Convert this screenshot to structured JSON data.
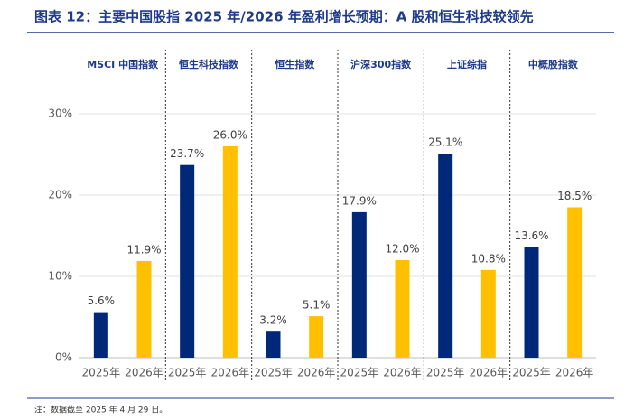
{
  "chart_data": {
    "type": "bar",
    "title": "图表 12：主要中国股指 2025 年/2026 年盈利增长预期：A 股和恒生科技较领先",
    "note": "注：数据截至 2025 年 4 月 29 日。",
    "groups": [
      "MSCI 中国指数",
      "恒生科技指数",
      "恒生指数",
      "沪深300指数",
      "上证综指",
      "中概股指数"
    ],
    "series": [
      {
        "name": "2025年",
        "color": "#002878",
        "values": [
          5.6,
          23.7,
          3.2,
          17.9,
          25.1,
          13.6
        ],
        "value_labels": [
          "5.6%",
          "23.7%",
          "3.2%",
          "17.9%",
          "25.1%",
          "13.6%"
        ]
      },
      {
        "name": "2026年",
        "color": "#ffc000",
        "values": [
          11.9,
          26.0,
          5.1,
          12.0,
          10.8,
          18.5
        ],
        "value_labels": [
          "11.9%",
          "26.0%",
          "5.1%",
          "12.0%",
          "10.8%",
          "18.5%"
        ]
      }
    ],
    "ylim": [
      0,
      30
    ],
    "yticks": [
      {
        "value": 0,
        "label": "0%"
      },
      {
        "value": 10,
        "label": "10%"
      },
      {
        "value": 20,
        "label": "20%"
      },
      {
        "value": 30,
        "label": "30%"
      }
    ],
    "grid": true
  }
}
